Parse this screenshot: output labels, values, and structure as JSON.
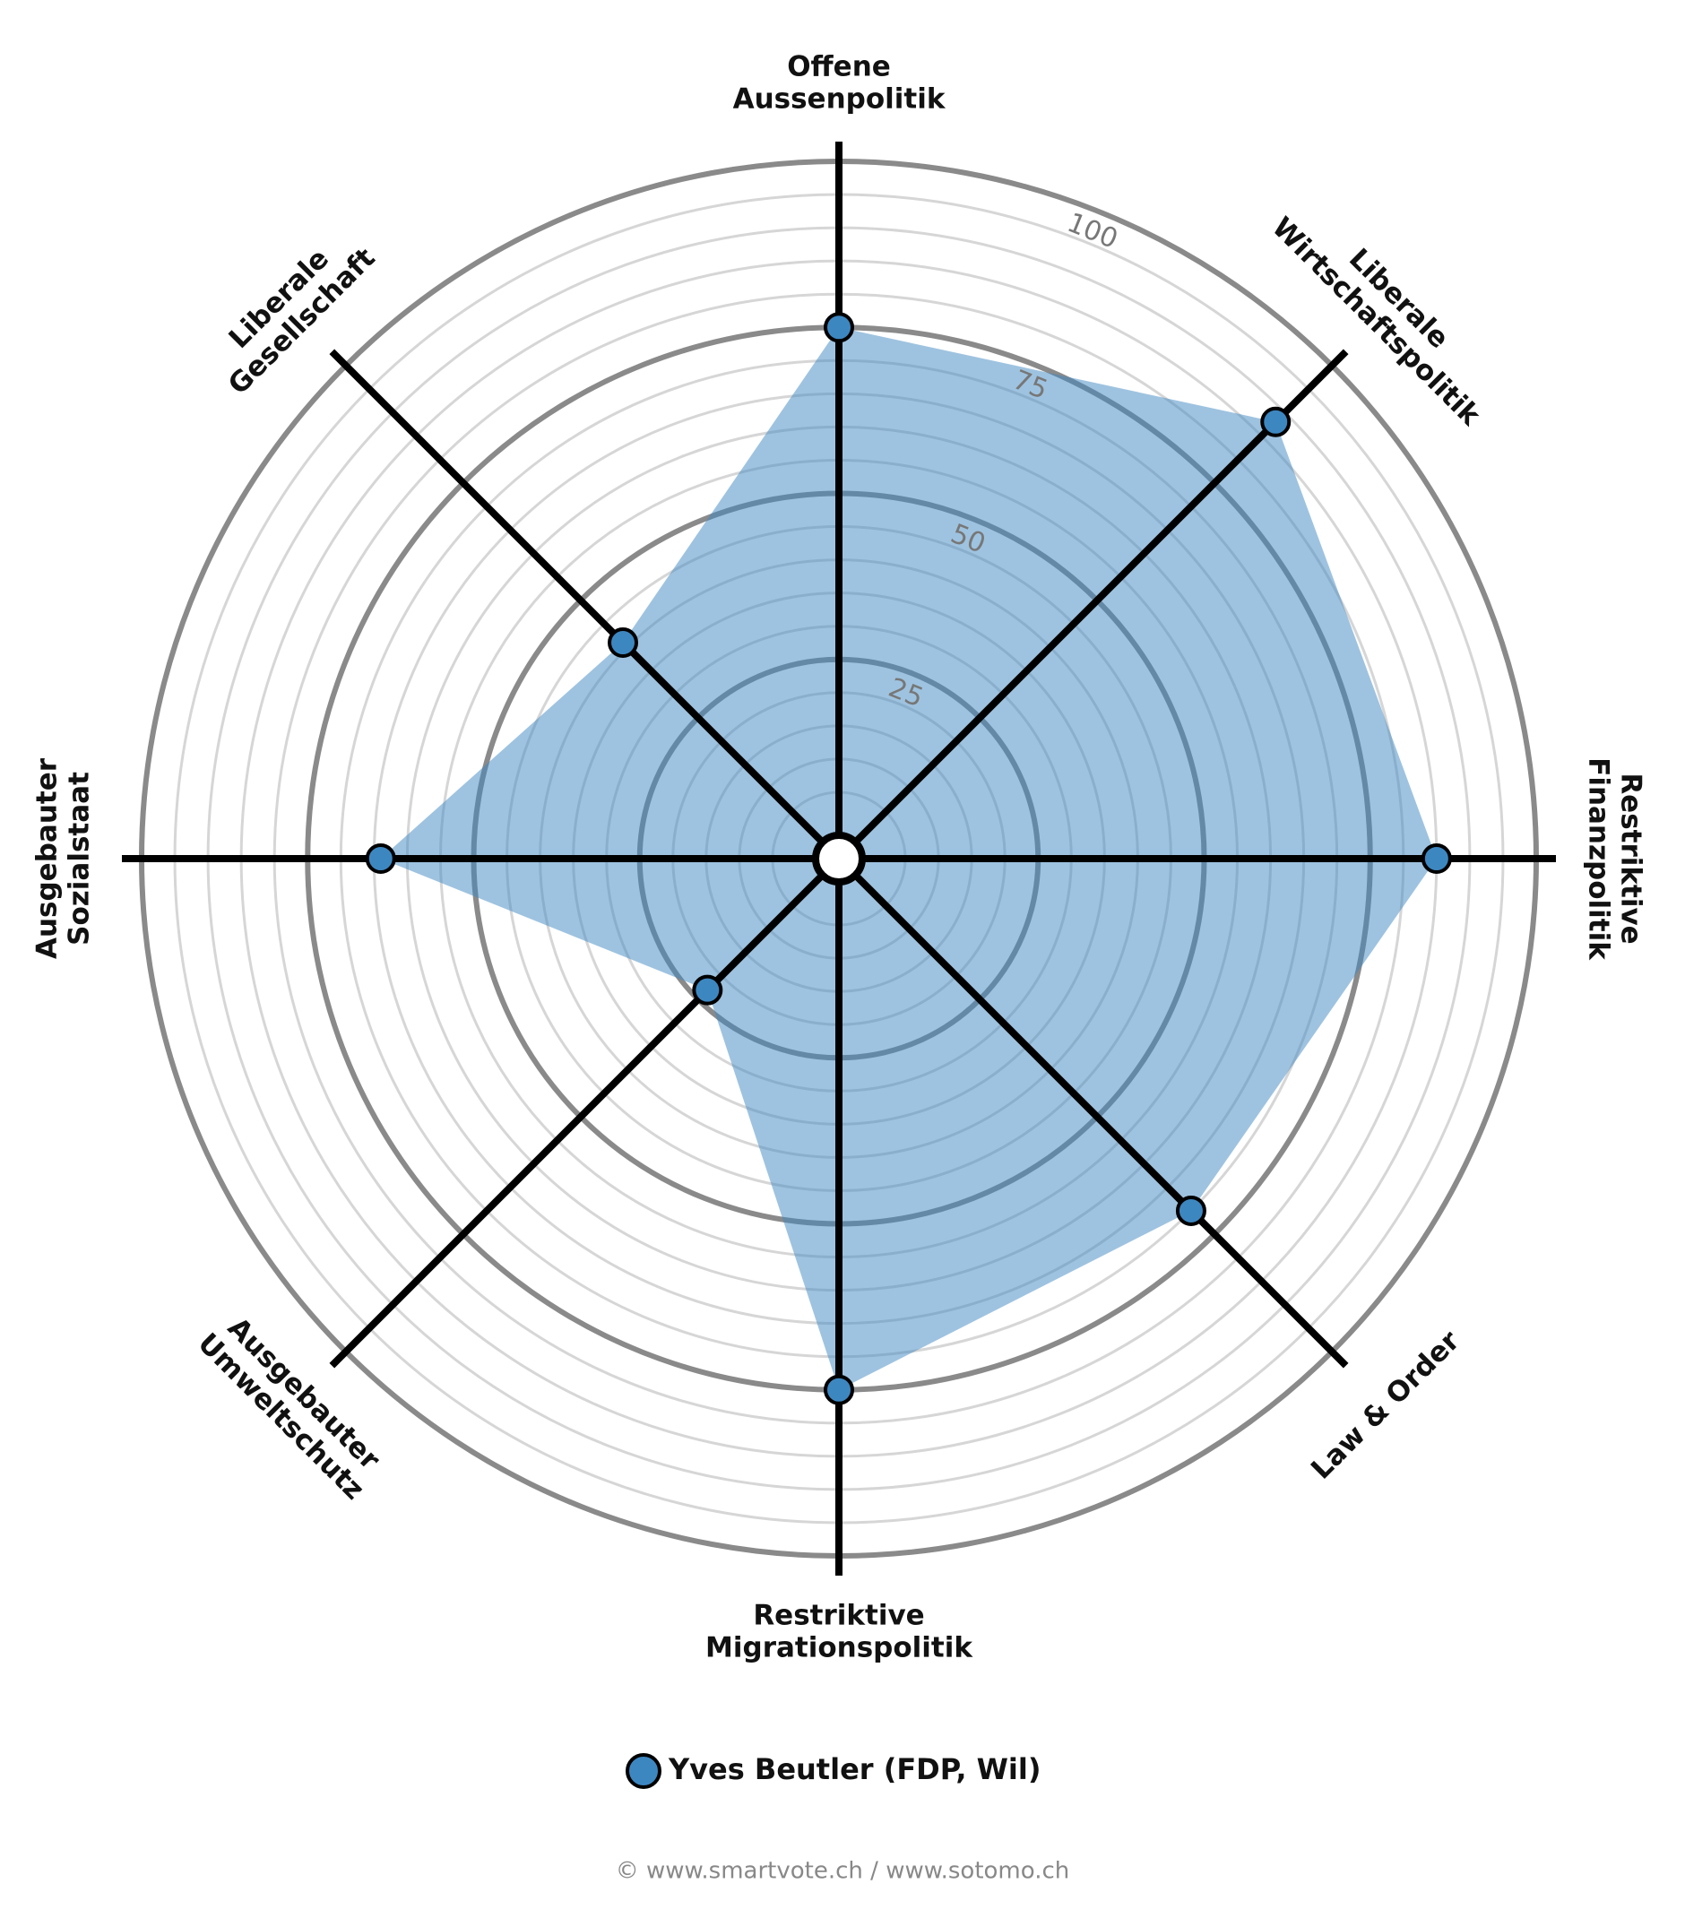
{
  "chart_data": {
    "type": "radar",
    "categories": [
      [
        "Offene",
        "Aussenpolitik"
      ],
      [
        "Liberale",
        "Wirtschaftspolitik"
      ],
      [
        "Restriktive",
        "Finanzpolitik"
      ],
      [
        "Law & Order"
      ],
      [
        "Restriktive",
        "Migrationspolitik"
      ],
      [
        "Ausgebauter",
        "Umweltschutz"
      ],
      [
        "Ausgebauter",
        "Sozialstaat"
      ],
      [
        "Liberale",
        "Gesellschaft"
      ]
    ],
    "series": [
      {
        "name": "Yves Beutler (FDP, Wil)",
        "color": "#3d87c1",
        "values": [
          75,
          88,
          85,
          70,
          75,
          23,
          64,
          41
        ]
      }
    ],
    "ylim": [
      0,
      100
    ],
    "yticks": [
      25,
      50,
      75,
      100
    ],
    "grid": true,
    "footer": "© www.smartvote.ch / www.sotomo.ch"
  }
}
